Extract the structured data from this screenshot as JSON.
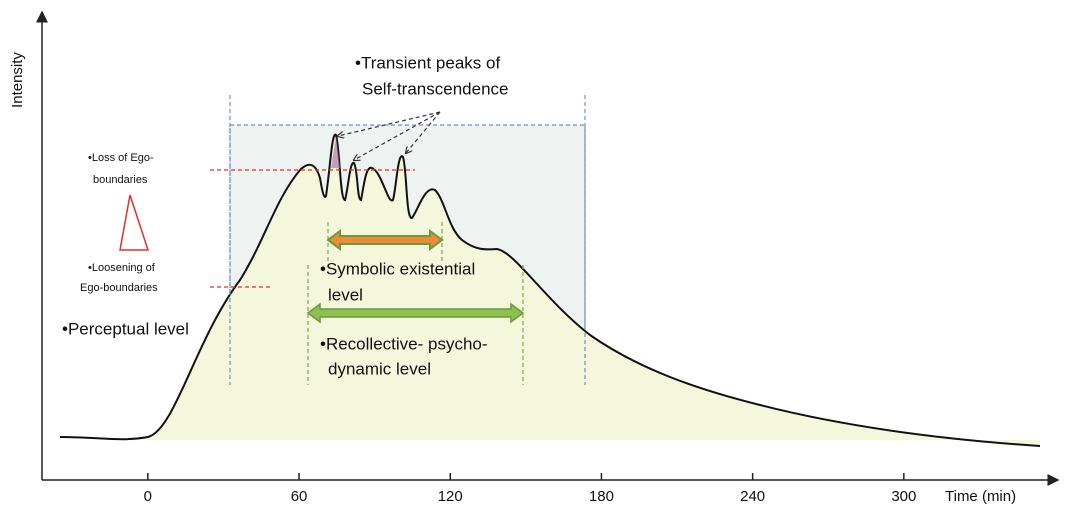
{
  "axis": {
    "y_label": "Intensity",
    "x_label": "Time (min)",
    "xlim": [
      -42,
      358
    ],
    "xticks": [
      0,
      60,
      120,
      180,
      240,
      300
    ]
  },
  "labels": {
    "transient_peaks": [
      "•Transient peaks of",
      "Self-transcendence"
    ],
    "loss_of_ego": [
      "•Loss of Ego-",
      "boundaries"
    ],
    "loosening_of_ego": [
      "•Loosening of",
      "Ego-boundaries"
    ],
    "perceptual": "•Perceptual level",
    "symbolic": [
      "•Symbolic existential",
      "level"
    ],
    "recollective": [
      "•Recollective- psycho-",
      "dynamic level"
    ]
  }
}
